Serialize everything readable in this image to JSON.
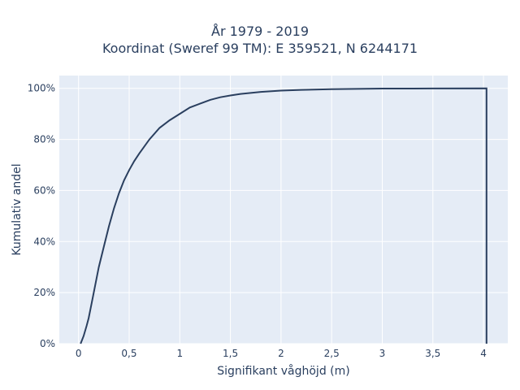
{
  "chart_data": {
    "type": "line",
    "line_shape": "step",
    "title": [
      "År 1979 - 2019",
      "Koordinat (Sweref 99 TM): E 359521, N 6244171"
    ],
    "xlabel": "Signifikant våghöjd (m)",
    "ylabel": "Kumulativ andel",
    "xlim": [
      -0.19,
      4.24
    ],
    "ylim": [
      0,
      1.05
    ],
    "x_ticks": [
      0,
      0.5,
      1,
      1.5,
      2,
      2.5,
      3,
      3.5,
      4
    ],
    "x_tick_labels": [
      "0",
      "0,5",
      "1",
      "1,5",
      "2",
      "2,5",
      "3",
      "3,5",
      "4"
    ],
    "y_ticks": [
      0,
      0.2,
      0.4,
      0.6,
      0.8,
      1.0
    ],
    "y_tick_labels": [
      "0%",
      "20%",
      "40%",
      "60%",
      "80%",
      "100%"
    ],
    "grid": true,
    "colors": {
      "line": "#2a3f5f",
      "plot_bg": "#e5ecf6",
      "grid": "#ffffff",
      "text": "#2a3f5f"
    },
    "series": [
      {
        "x": [
          0.02,
          0.05,
          0.08,
          0.1,
          0.13,
          0.15,
          0.18,
          0.2,
          0.25,
          0.3,
          0.35,
          0.4,
          0.45,
          0.5,
          0.55,
          0.6,
          0.7,
          0.8,
          0.9,
          1.0,
          1.1,
          1.2,
          1.3,
          1.4,
          1.5,
          1.6,
          1.8,
          2.0,
          2.2,
          2.5,
          3.0,
          3.5,
          4.03
        ],
        "y": [
          0.0,
          0.03,
          0.07,
          0.1,
          0.16,
          0.2,
          0.26,
          0.3,
          0.38,
          0.46,
          0.53,
          0.59,
          0.64,
          0.68,
          0.715,
          0.745,
          0.8,
          0.845,
          0.875,
          0.9,
          0.925,
          0.94,
          0.955,
          0.965,
          0.972,
          0.978,
          0.986,
          0.991,
          0.994,
          0.997,
          0.999,
          0.9995,
          1.0
        ]
      }
    ]
  }
}
